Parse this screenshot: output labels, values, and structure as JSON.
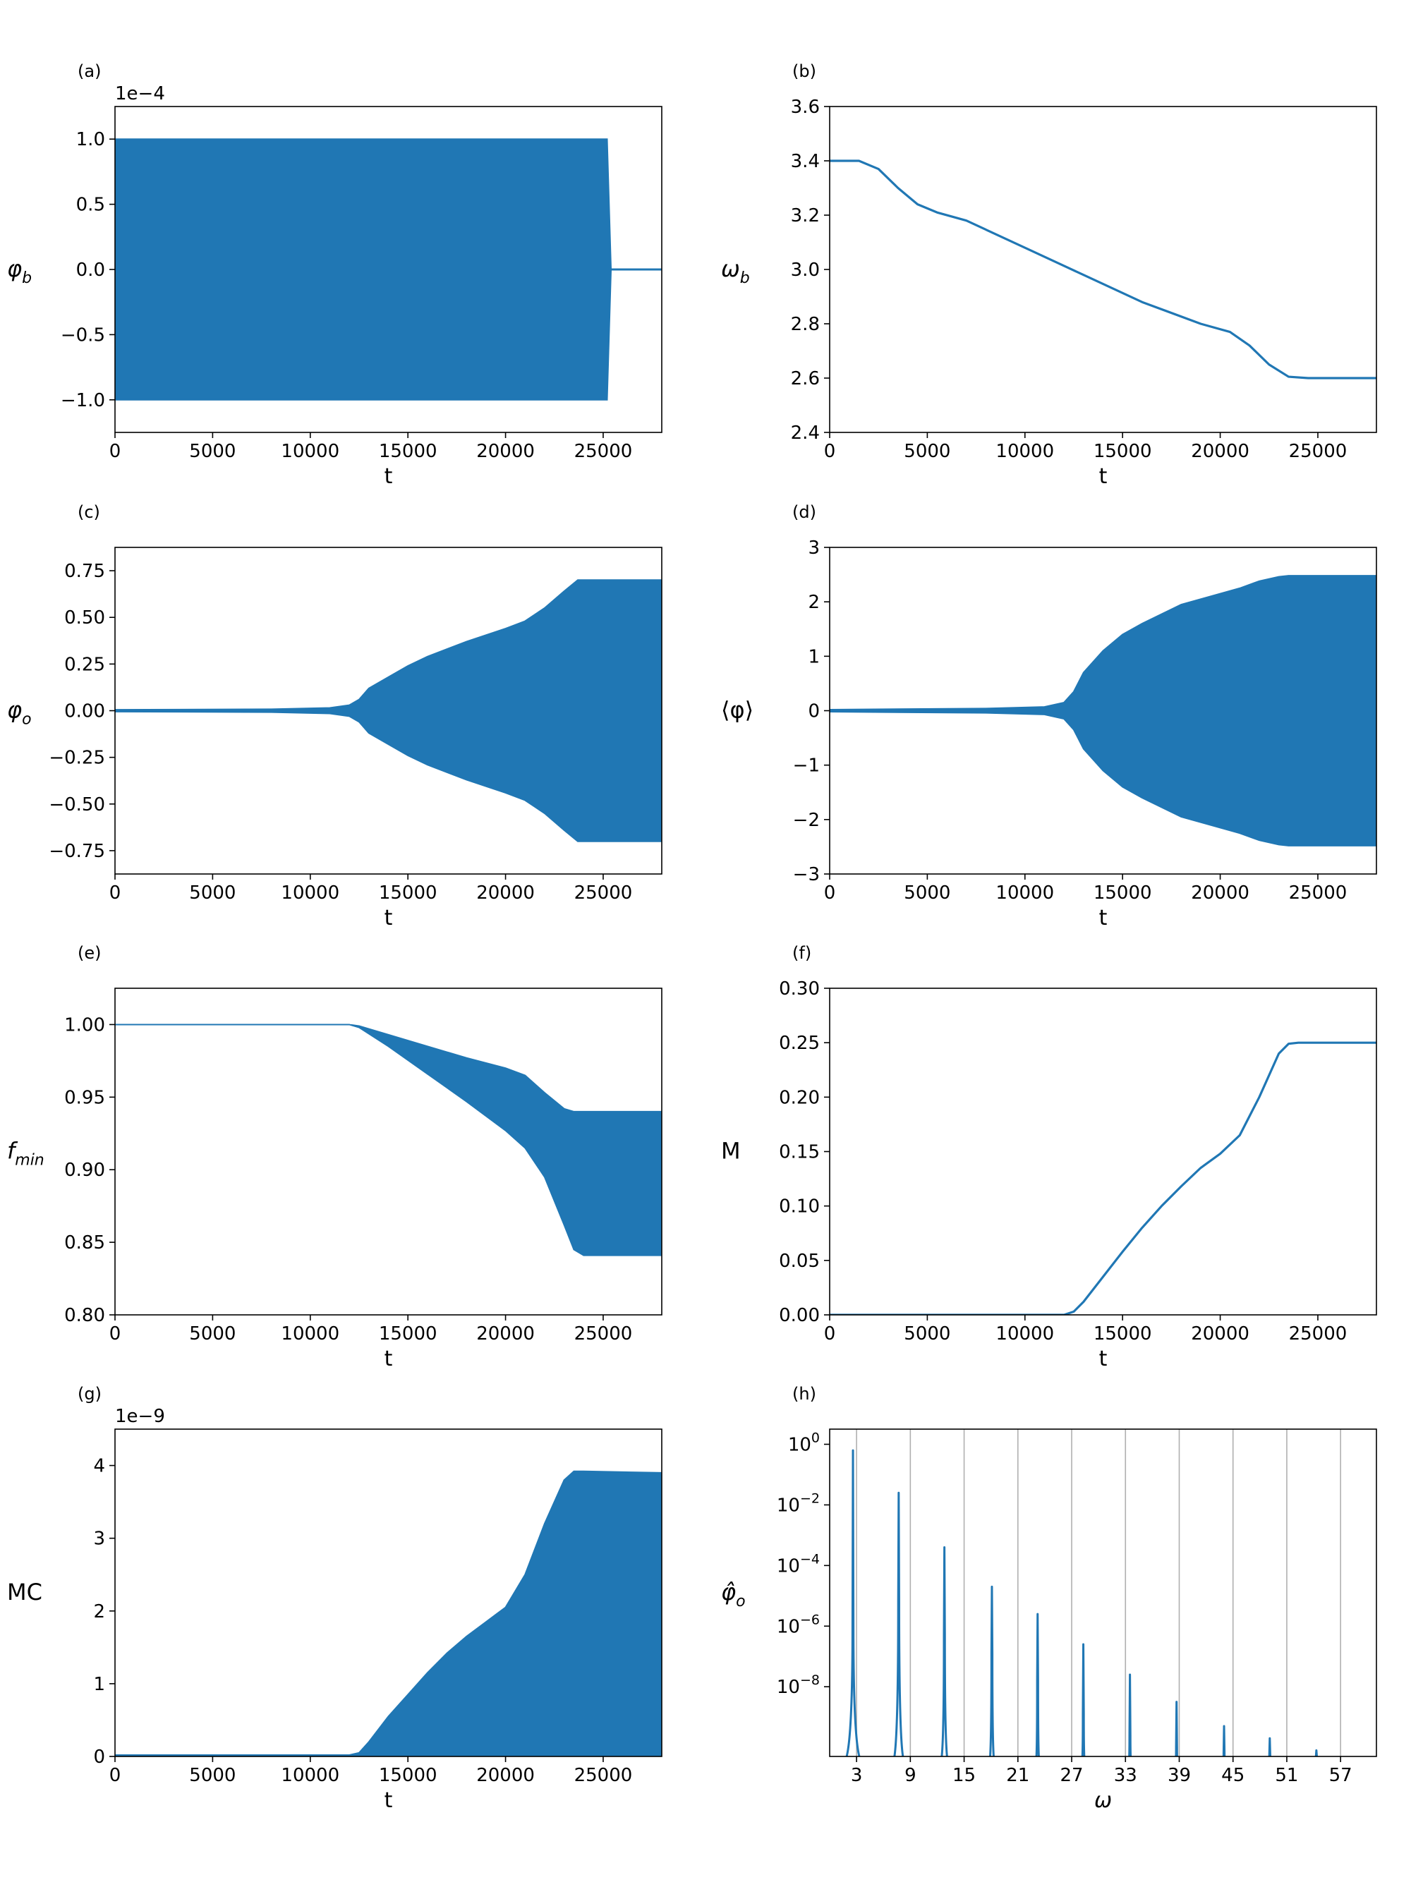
{
  "colors": {
    "series": "#2077b4",
    "grid": "#b0b0b0",
    "axes": "#000000"
  },
  "chart_data": [
    {
      "panel": "(a)",
      "type": "area",
      "xlabel": "t",
      "ylabel": "φ_b",
      "ylabel_main": "φ",
      "ylabel_sub": "b",
      "offset_text": "1e−4",
      "xlim": [
        0,
        28000
      ],
      "ylim": [
        -1.25,
        1.25
      ],
      "xticks": [
        0,
        5000,
        10000,
        15000,
        20000,
        25000
      ],
      "xtick_labels": [
        "0",
        "5000",
        "10000",
        "15000",
        "20000",
        "25000"
      ],
      "yticks": [
        1.0,
        0.5,
        0.0,
        -0.5,
        -1.0
      ],
      "ytick_labels": [
        "1.0",
        "0.5",
        "0.0",
        "−0.5",
        "−1.0"
      ],
      "envelope_x": [
        0,
        25200,
        25400,
        28000
      ],
      "upper": [
        1.0,
        1.0,
        0.0,
        0.0
      ],
      "lower": [
        -1.0,
        -1.0,
        0.0,
        0.0
      ]
    },
    {
      "panel": "(b)",
      "type": "line",
      "xlabel": "t",
      "ylabel": "ω_b",
      "ylabel_main": "ω",
      "ylabel_sub": "b",
      "offset_text": "",
      "xlim": [
        0,
        28000
      ],
      "ylim": [
        2.4,
        3.6
      ],
      "xticks": [
        0,
        5000,
        10000,
        15000,
        20000,
        25000
      ],
      "xtick_labels": [
        "0",
        "5000",
        "10000",
        "15000",
        "20000",
        "25000"
      ],
      "yticks": [
        3.6,
        3.4,
        3.2,
        3.0,
        2.8,
        2.6,
        2.4
      ],
      "ytick_labels": [
        "3.6",
        "3.4",
        "3.2",
        "3.0",
        "2.8",
        "2.6",
        "2.4"
      ],
      "x": [
        0,
        1500,
        2500,
        3500,
        4500,
        5500,
        7000,
        10000,
        13000,
        16000,
        19000,
        20500,
        21500,
        22500,
        23500,
        24500,
        28000
      ],
      "y": [
        3.4,
        3.4,
        3.37,
        3.3,
        3.24,
        3.21,
        3.18,
        3.08,
        2.98,
        2.88,
        2.8,
        2.77,
        2.72,
        2.65,
        2.605,
        2.6,
        2.6
      ]
    },
    {
      "panel": "(c)",
      "type": "area",
      "xlabel": "t",
      "ylabel": "φ_o",
      "ylabel_main": "φ",
      "ylabel_sub": "o",
      "offset_text": "",
      "xlim": [
        0,
        28000
      ],
      "ylim": [
        -0.875,
        0.875
      ],
      "xticks": [
        0,
        5000,
        10000,
        15000,
        20000,
        25000
      ],
      "xtick_labels": [
        "0",
        "5000",
        "10000",
        "15000",
        "20000",
        "25000"
      ],
      "yticks": [
        0.75,
        0.5,
        0.25,
        0.0,
        -0.25,
        -0.5,
        -0.75
      ],
      "ytick_labels": [
        "0.75",
        "0.50",
        "0.25",
        "0.00",
        "−0.25",
        "−0.50",
        "−0.75"
      ],
      "envelope_x": [
        0,
        8000,
        11000,
        12000,
        12500,
        13000,
        14000,
        15000,
        16000,
        18000,
        20000,
        21000,
        22000,
        23000,
        23700,
        28000
      ],
      "upper": [
        0.005,
        0.008,
        0.015,
        0.03,
        0.06,
        0.12,
        0.18,
        0.24,
        0.29,
        0.37,
        0.44,
        0.48,
        0.55,
        0.64,
        0.7,
        0.7
      ],
      "lower": [
        -0.005,
        -0.008,
        -0.015,
        -0.03,
        -0.06,
        -0.12,
        -0.18,
        -0.24,
        -0.29,
        -0.37,
        -0.44,
        -0.48,
        -0.55,
        -0.64,
        -0.7,
        -0.7
      ]
    },
    {
      "panel": "(d)",
      "type": "area",
      "xlabel": "t",
      "ylabel": "⟨φ⟩",
      "offset_text": "",
      "xlim": [
        0,
        28000
      ],
      "ylim": [
        -3,
        3
      ],
      "xticks": [
        0,
        5000,
        10000,
        15000,
        20000,
        25000
      ],
      "xtick_labels": [
        "0",
        "5000",
        "10000",
        "15000",
        "20000",
        "25000"
      ],
      "yticks": [
        3,
        2,
        1,
        0,
        -1,
        -2,
        -3
      ],
      "ytick_labels": [
        "3",
        "2",
        "1",
        "0",
        "−1",
        "−2",
        "−3"
      ],
      "envelope_x": [
        0,
        8000,
        11000,
        12000,
        12500,
        13000,
        14000,
        15000,
        16000,
        18000,
        20000,
        21000,
        22000,
        23000,
        23500,
        28000
      ],
      "upper": [
        0.02,
        0.04,
        0.07,
        0.15,
        0.35,
        0.7,
        1.1,
        1.4,
        1.6,
        1.95,
        2.15,
        2.25,
        2.38,
        2.46,
        2.48,
        2.48
      ],
      "lower": [
        -0.02,
        -0.04,
        -0.07,
        -0.15,
        -0.35,
        -0.7,
        -1.1,
        -1.4,
        -1.6,
        -1.95,
        -2.15,
        -2.25,
        -2.38,
        -2.46,
        -2.48,
        -2.48
      ]
    },
    {
      "panel": "(e)",
      "type": "area",
      "xlabel": "t",
      "ylabel": "f_min",
      "ylabel_main": "f",
      "ylabel_sub": "min",
      "offset_text": "",
      "xlim": [
        0,
        28000
      ],
      "ylim": [
        0.8,
        1.025
      ],
      "xticks": [
        0,
        5000,
        10000,
        15000,
        20000,
        25000
      ],
      "xtick_labels": [
        "0",
        "5000",
        "10000",
        "15000",
        "20000",
        "25000"
      ],
      "yticks": [
        1.0,
        0.95,
        0.9,
        0.85,
        0.8
      ],
      "ytick_labels": [
        "1.00",
        "0.95",
        "0.90",
        "0.85",
        "0.80"
      ],
      "envelope_x": [
        0,
        12000,
        12500,
        14000,
        16000,
        18000,
        20000,
        21000,
        22000,
        23000,
        23500,
        24000,
        28000
      ],
      "upper": [
        1.0,
        1.0,
        0.999,
        0.993,
        0.985,
        0.977,
        0.97,
        0.965,
        0.953,
        0.942,
        0.94,
        0.94,
        0.94
      ],
      "lower": [
        1.0,
        1.0,
        0.998,
        0.985,
        0.966,
        0.947,
        0.927,
        0.915,
        0.895,
        0.862,
        0.845,
        0.841,
        0.841
      ]
    },
    {
      "panel": "(f)",
      "type": "line",
      "xlabel": "t",
      "ylabel": "M",
      "offset_text": "",
      "xlim": [
        0,
        28000
      ],
      "ylim": [
        0.0,
        0.3
      ],
      "xticks": [
        0,
        5000,
        10000,
        15000,
        20000,
        25000
      ],
      "xtick_labels": [
        "0",
        "5000",
        "10000",
        "15000",
        "20000",
        "25000"
      ],
      "yticks": [
        0.3,
        0.25,
        0.2,
        0.15,
        0.1,
        0.05,
        0.0
      ],
      "ytick_labels": [
        "0.30",
        "0.25",
        "0.20",
        "0.15",
        "0.10",
        "0.05",
        "0.00"
      ],
      "x": [
        0,
        12000,
        12500,
        13000,
        14000,
        15000,
        16000,
        17000,
        18000,
        19000,
        20000,
        21000,
        22000,
        23000,
        23500,
        24000,
        28000
      ],
      "y": [
        0.0,
        0.0,
        0.003,
        0.012,
        0.035,
        0.058,
        0.08,
        0.1,
        0.118,
        0.135,
        0.148,
        0.165,
        0.2,
        0.24,
        0.249,
        0.25,
        0.25
      ]
    },
    {
      "panel": "(g)",
      "type": "area",
      "xlabel": "t",
      "ylabel": "MC",
      "offset_text": "1e−9",
      "xlim": [
        0,
        28000
      ],
      "ylim": [
        0,
        4.5
      ],
      "xticks": [
        0,
        5000,
        10000,
        15000,
        20000,
        25000
      ],
      "xtick_labels": [
        "0",
        "5000",
        "10000",
        "15000",
        "20000",
        "25000"
      ],
      "yticks": [
        4,
        3,
        2,
        1,
        0
      ],
      "ytick_labels": [
        "4",
        "3",
        "2",
        "1",
        "0"
      ],
      "envelope_x": [
        0,
        12000,
        12500,
        13000,
        14000,
        15000,
        16000,
        17000,
        18000,
        19000,
        20000,
        21000,
        22000,
        23000,
        23500,
        24000,
        28000
      ],
      "upper": [
        0.02,
        0.02,
        0.05,
        0.2,
        0.55,
        0.85,
        1.15,
        1.42,
        1.65,
        1.85,
        2.05,
        2.5,
        3.2,
        3.8,
        3.92,
        3.92,
        3.9
      ],
      "lower": [
        0.0,
        0.0,
        0.0,
        0.0,
        0.0,
        0.0,
        0.0,
        0.0,
        0.0,
        0.0,
        0.0,
        0.0,
        0.0,
        0.0,
        0.0,
        0.0,
        0.0
      ]
    },
    {
      "panel": "(h)",
      "type": "line",
      "xlabel": "ω",
      "ylabel": "φ̂_o",
      "ylabel_main": "φ̂",
      "ylabel_sub": "o",
      "offset_text": "",
      "yscale": "log",
      "grid": "vertical",
      "xlim": [
        0,
        61
      ],
      "ylim_log10": [
        -10.3,
        0.5
      ],
      "xticks": [
        3,
        9,
        15,
        21,
        27,
        33,
        39,
        45,
        51,
        57
      ],
      "xtick_labels": [
        "3",
        "9",
        "15",
        "21",
        "27",
        "33",
        "39",
        "45",
        "51",
        "57"
      ],
      "yticks_log10": [
        0,
        -2,
        -4,
        -6,
        -8
      ],
      "ytick_base": "10",
      "ytick_exponents": [
        "0",
        "−2",
        "−4",
        "−6",
        "−8"
      ],
      "peaks": [
        {
          "x": 2.6,
          "log_peak": -0.2,
          "log_shoulder": -6,
          "width": 2.2
        },
        {
          "x": 7.7,
          "log_peak": -1.6,
          "log_shoulder": -5.2,
          "width": 1.4
        },
        {
          "x": 12.8,
          "log_peak": -3.4,
          "log_shoulder": -6.3,
          "width": 0.9
        },
        {
          "x": 18.1,
          "log_peak": -4.7,
          "log_shoulder": -6.9,
          "width": 0.6
        },
        {
          "x": 23.2,
          "log_peak": -5.6,
          "log_shoulder": -7.8,
          "width": 0.4
        },
        {
          "x": 28.3,
          "log_peak": -6.6,
          "log_shoulder": -8.9,
          "width": 0.35
        },
        {
          "x": 33.5,
          "log_peak": -7.6,
          "log_shoulder": -9.6,
          "width": 0.3
        },
        {
          "x": 38.7,
          "log_peak": -8.5,
          "log_shoulder": -10.0,
          "width": 0.25
        },
        {
          "x": 44.0,
          "log_peak": -9.3,
          "log_shoulder": -10.2,
          "width": 0.2
        },
        {
          "x": 49.1,
          "log_peak": -9.7,
          "log_shoulder": -10.25,
          "width": 0.2
        },
        {
          "x": 54.3,
          "log_peak": -10.1,
          "log_shoulder": -10.3,
          "width": 0.2
        }
      ]
    }
  ]
}
